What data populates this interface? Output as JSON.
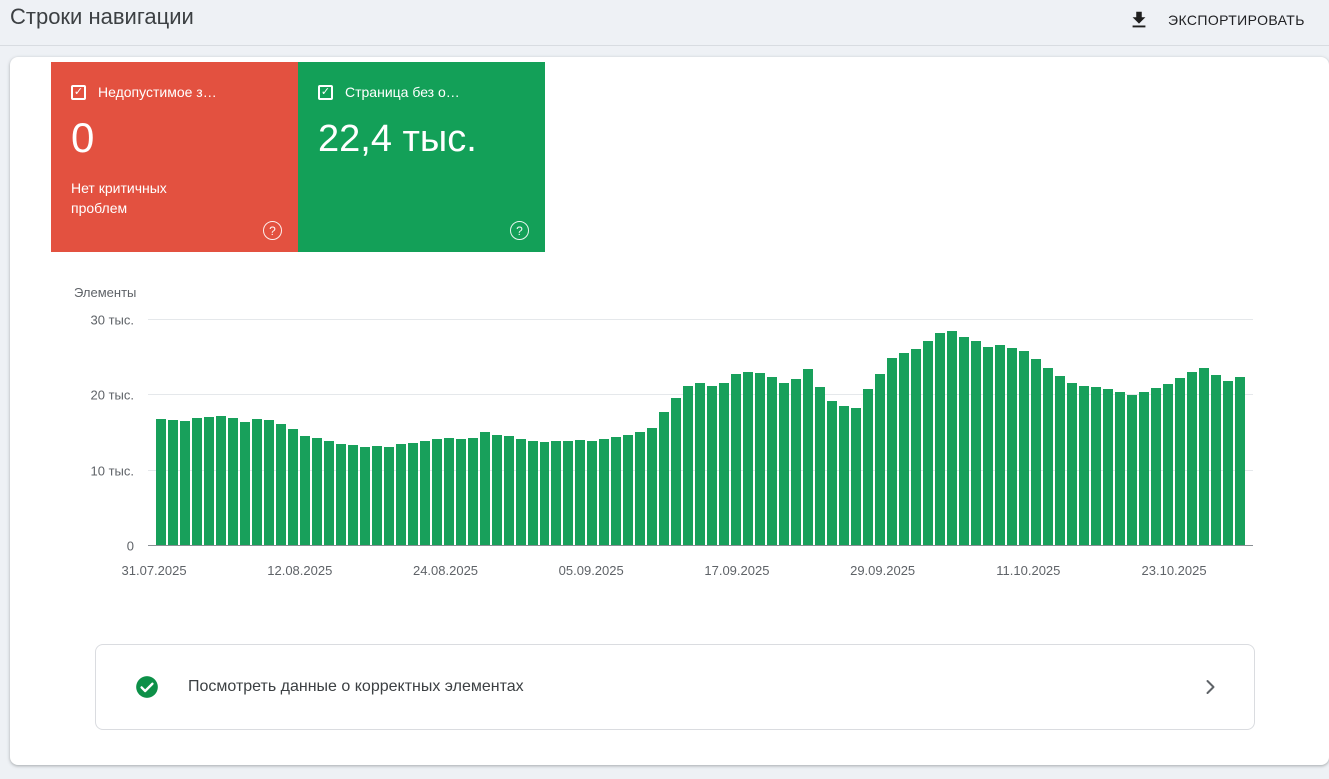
{
  "header": {
    "title": "Строки навигации",
    "export_label": "ЭКСПОРТИРОВАТЬ"
  },
  "summary_cards": {
    "error": {
      "label": "Недопустимое з…",
      "value": "0",
      "description": "Нет критичных проблем",
      "color": "#e35140"
    },
    "valid": {
      "label": "Страница без о…",
      "value": "22,4 тыс.",
      "color": "#13a058"
    }
  },
  "chart_data": {
    "type": "bar",
    "title": "",
    "series_label": "Элементы",
    "bar_color": "#18a05b",
    "values_unit": "thousands",
    "ymax": 31,
    "ylim": [
      0,
      31000
    ],
    "date_start": "31.07.2025",
    "date_end": "29.10.2025",
    "y_ticks": [
      {
        "label": "30 тыс.",
        "value": 30
      },
      {
        "label": "20 тыс.",
        "value": 20
      },
      {
        "label": "10 тыс.",
        "value": 10
      },
      {
        "label": "0",
        "value": 0
      }
    ],
    "x_ticks": [
      {
        "label": "31.07.2025",
        "index": 0
      },
      {
        "label": "12.08.2025",
        "index": 12
      },
      {
        "label": "24.08.2025",
        "index": 24
      },
      {
        "label": "05.09.2025",
        "index": 36
      },
      {
        "label": "17.09.2025",
        "index": 48
      },
      {
        "label": "29.09.2025",
        "index": 60
      },
      {
        "label": "11.10.2025",
        "index": 72
      },
      {
        "label": "23.10.2025",
        "index": 84
      }
    ],
    "values": [
      16.8,
      16.6,
      16.5,
      16.9,
      17.0,
      17.2,
      16.9,
      16.4,
      16.8,
      16.6,
      16.1,
      15.4,
      14.5,
      14.2,
      13.8,
      13.5,
      13.3,
      13.1,
      13.2,
      13.0,
      13.4,
      13.6,
      13.9,
      14.1,
      14.2,
      14.1,
      14.3,
      15.0,
      14.7,
      14.5,
      14.1,
      13.8,
      13.7,
      13.9,
      13.8,
      14.0,
      13.9,
      14.1,
      14.4,
      14.7,
      15.0,
      15.6,
      17.7,
      19.6,
      21.2,
      21.6,
      21.1,
      21.6,
      22.8,
      23.0,
      22.9,
      22.4,
      21.5,
      22.1,
      23.4,
      21.0,
      19.2,
      18.5,
      18.2,
      20.7,
      22.7,
      24.9,
      25.5,
      26.1,
      27.2,
      28.2,
      28.5,
      27.7,
      27.2,
      26.3,
      26.6,
      26.2,
      25.8,
      24.8,
      23.5,
      22.5,
      21.6,
      21.2,
      21.0,
      20.7,
      20.3,
      19.9,
      20.3,
      20.9,
      21.4,
      22.2,
      23.0,
      23.6,
      22.6,
      21.8,
      22.4
    ]
  },
  "footer_action": {
    "label": "Посмотреть данные о корректных элементах"
  }
}
